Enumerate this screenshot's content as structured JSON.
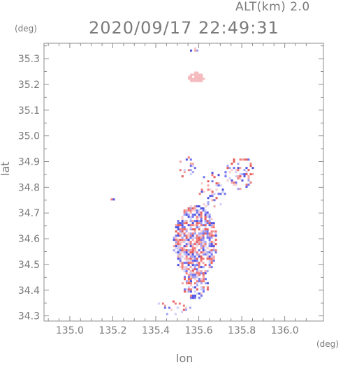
{
  "header": {
    "altitude_label": "ALT(km) 2.0",
    "timestamp": "2020/09/17 22:49:31"
  },
  "chart_data": {
    "type": "scatter",
    "ylabel": "lat",
    "xlabel": "lon",
    "y_unit": "(deg)",
    "x_unit": "(deg)",
    "xlim": [
      134.88,
      136.18
    ],
    "ylim": [
      34.28,
      35.36
    ],
    "xticks": [
      "135.0",
      "135.2",
      "135.4",
      "135.6",
      "135.8",
      "136.0"
    ],
    "yticks": [
      "34.3",
      "34.4",
      "34.5",
      "34.6",
      "34.7",
      "34.8",
      "34.9",
      "35.0",
      "35.1",
      "35.2",
      "35.3"
    ],
    "grid": false,
    "colors": {
      "positive": "#f08a8a",
      "negative": "#7c7cf0",
      "neutral": "#f4b8bc",
      "axis": "#8c8c8c"
    },
    "echo_regions": [
      {
        "name": "north-top",
        "lon": [
          135.54,
          135.62
        ],
        "lat": [
          35.33,
          35.36
        ],
        "density": 0.25
      },
      {
        "name": "north-blob",
        "lon": [
          135.55,
          135.62
        ],
        "lat": [
          35.21,
          35.25
        ],
        "density": 0.9,
        "style": "neutral"
      },
      {
        "name": "ne-cluster-1",
        "lon": [
          135.72,
          135.86
        ],
        "lat": [
          34.79,
          34.92
        ],
        "density": 0.35
      },
      {
        "name": "ne-cluster-2",
        "lon": [
          135.5,
          135.58
        ],
        "lat": [
          34.84,
          34.92
        ],
        "density": 0.22
      },
      {
        "name": "mid-band",
        "lon": [
          135.6,
          135.72
        ],
        "lat": [
          34.72,
          34.86
        ],
        "density": 0.25
      },
      {
        "name": "main-body",
        "lon": [
          135.48,
          135.68
        ],
        "lat": [
          34.45,
          34.73
        ],
        "density": 0.7
      },
      {
        "name": "main-tail",
        "lon": [
          135.52,
          135.64
        ],
        "lat": [
          34.37,
          34.48
        ],
        "density": 0.55
      },
      {
        "name": "south-strip",
        "lon": [
          135.38,
          135.56
        ],
        "lat": [
          34.31,
          34.36
        ],
        "density": 0.25
      },
      {
        "name": "west-isolated",
        "lon": [
          135.19,
          135.2
        ],
        "lat": [
          34.755,
          34.765
        ],
        "density": 1.0
      }
    ]
  }
}
